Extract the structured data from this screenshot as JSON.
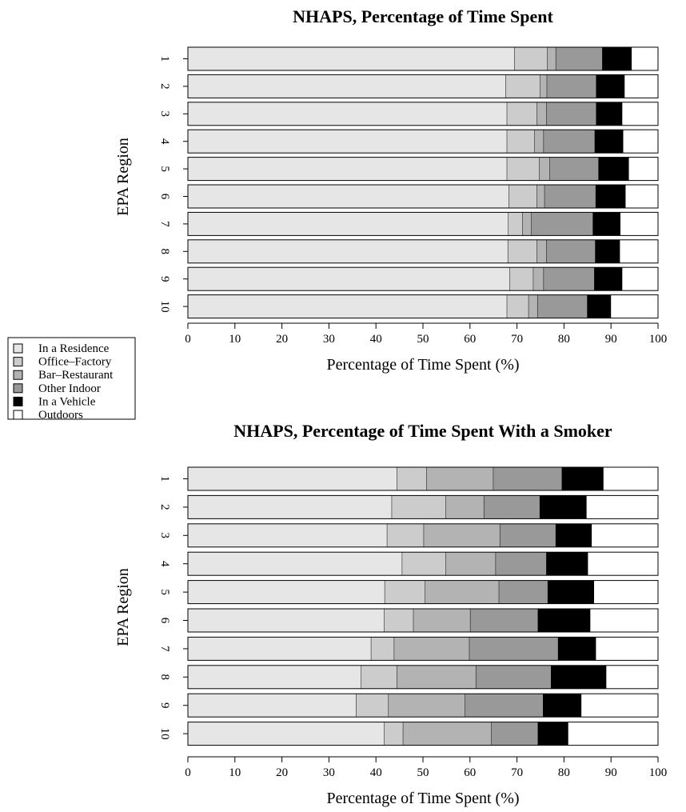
{
  "colors": {
    "In a Residence": "#e6e6e6",
    "Office-Factory": "#cccccc",
    "Bar-Restaurant": "#b3b3b3",
    "Other Indoor": "#999999",
    "In a Vehicle": "#000000",
    "Outdoors": "#ffffff"
  },
  "legend": {
    "entries": [
      "In a Residence",
      "Office–Factory",
      "Bar–Restaurant",
      "Other Indoor",
      "In a Vehicle",
      "Outdoors"
    ]
  },
  "chart_data": [
    {
      "type": "bar",
      "orientation": "horizontal",
      "stacked": true,
      "title": "NHAPS, Percentage of Time Spent",
      "xlabel": "Percentage of Time Spent (%)",
      "ylabel": "EPA Region",
      "xlim": [
        0,
        100
      ],
      "xticks": [
        0,
        10,
        20,
        30,
        40,
        50,
        60,
        70,
        80,
        90,
        100
      ],
      "categories": [
        "1",
        "2",
        "3",
        "4",
        "5",
        "6",
        "7",
        "8",
        "9",
        "10"
      ],
      "series": [
        {
          "name": "In a Residence",
          "values": [
            69.5,
            67.6,
            67.9,
            67.9,
            67.9,
            68.3,
            68.2,
            68.1,
            68.5,
            67.9
          ]
        },
        {
          "name": "Office–Factory",
          "values": [
            7.0,
            7.4,
            6.4,
            5.9,
            6.9,
            6.0,
            3.0,
            6.2,
            5.0,
            4.6
          ]
        },
        {
          "name": "Bar–Restaurant",
          "values": [
            1.8,
            1.4,
            2.0,
            1.9,
            2.2,
            1.6,
            1.9,
            2.0,
            2.2,
            1.9
          ]
        },
        {
          "name": "Other Indoor",
          "values": [
            9.9,
            10.5,
            10.6,
            10.9,
            10.4,
            10.9,
            13.1,
            10.4,
            10.8,
            10.6
          ]
        },
        {
          "name": "In a Vehicle",
          "values": [
            6.2,
            6.0,
            5.5,
            6.0,
            6.4,
            6.3,
            5.8,
            5.2,
            5.9,
            5.0
          ]
        },
        {
          "name": "Outdoors",
          "values": [
            5.6,
            7.1,
            7.6,
            7.4,
            6.2,
            6.9,
            8.0,
            8.1,
            7.6,
            10.0
          ]
        }
      ]
    },
    {
      "type": "bar",
      "orientation": "horizontal",
      "stacked": true,
      "title": "NHAPS, Percentage of Time Spent With a Smoker",
      "xlabel": "Percentage of Time Spent (%)",
      "ylabel": "EPA Region",
      "xlim": [
        0,
        100
      ],
      "xticks": [
        0,
        10,
        20,
        30,
        40,
        50,
        60,
        70,
        80,
        90,
        100
      ],
      "categories": [
        "1",
        "2",
        "3",
        "4",
        "5",
        "6",
        "7",
        "8",
        "9",
        "10"
      ],
      "series": [
        {
          "name": "In a Residence",
          "values": [
            44.5,
            43.4,
            42.4,
            45.6,
            41.9,
            41.8,
            39.0,
            36.9,
            35.8,
            41.8
          ]
        },
        {
          "name": "Office–Factory",
          "values": [
            6.3,
            11.5,
            7.8,
            9.3,
            8.6,
            6.2,
            4.9,
            7.6,
            6.9,
            4.0
          ]
        },
        {
          "name": "Bar–Restaurant",
          "values": [
            14.2,
            8.1,
            16.2,
            10.6,
            15.7,
            12.1,
            16.0,
            16.8,
            16.3,
            18.8
          ]
        },
        {
          "name": "Other Indoor",
          "values": [
            14.6,
            11.9,
            11.9,
            10.8,
            10.4,
            14.4,
            18.9,
            16.0,
            16.6,
            9.9
          ]
        },
        {
          "name": "In a Vehicle",
          "values": [
            8.8,
            9.9,
            7.6,
            8.8,
            9.8,
            11.1,
            8.0,
            11.7,
            8.1,
            6.4
          ]
        },
        {
          "name": "Outdoors",
          "values": [
            11.6,
            15.2,
            14.1,
            14.9,
            13.6,
            14.4,
            13.2,
            11.0,
            16.3,
            19.1
          ]
        }
      ]
    }
  ]
}
